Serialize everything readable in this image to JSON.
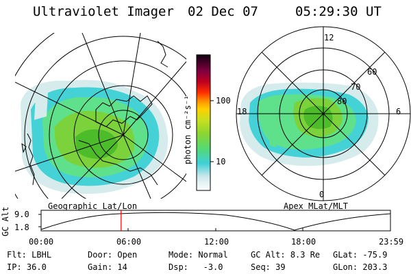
{
  "header": {
    "instrument": "Ultraviolet Imager",
    "date": "02 Dec 07",
    "time": "05:29:30 UT"
  },
  "colorbar": {
    "unit": "photon cm⁻²s⁻¹",
    "ticks": [
      "100",
      "10"
    ]
  },
  "left_map": {
    "label": "Geographic Lat/Lon"
  },
  "right_map": {
    "label": "Apex MLat/MLT",
    "mlt_labels": [
      "12",
      "18",
      "6",
      "0"
    ],
    "mlat_labels": [
      "60",
      "70",
      "80"
    ]
  },
  "timeline": {
    "axis_label": "GC Alt",
    "yticks": [
      "9.0",
      "1.8"
    ],
    "xticks": [
      "00:00",
      "06:00",
      "12:00",
      "18:00",
      "23:59"
    ],
    "current_fraction": 0.229
  },
  "status": {
    "row1": [
      {
        "k": "Flt:",
        "v": "LBHL"
      },
      {
        "k": "Door:",
        "v": "Open"
      },
      {
        "k": "Mode:",
        "v": "Normal"
      },
      {
        "k": "GC Alt:",
        "v": "8.3 Re"
      },
      {
        "k": "GLat:",
        "v": "-75.9"
      }
    ],
    "row2": [
      {
        "k": "IP:",
        "v": "36.0"
      },
      {
        "k": "Gain:",
        "v": "14"
      },
      {
        "k": "Dsp:",
        "v": "  -3.0"
      },
      {
        "k": "Seq:",
        "v": "39"
      },
      {
        "k": "GLon:",
        "v": "203.3"
      }
    ]
  },
  "colors": {
    "accent_marker": "#ff0000"
  }
}
